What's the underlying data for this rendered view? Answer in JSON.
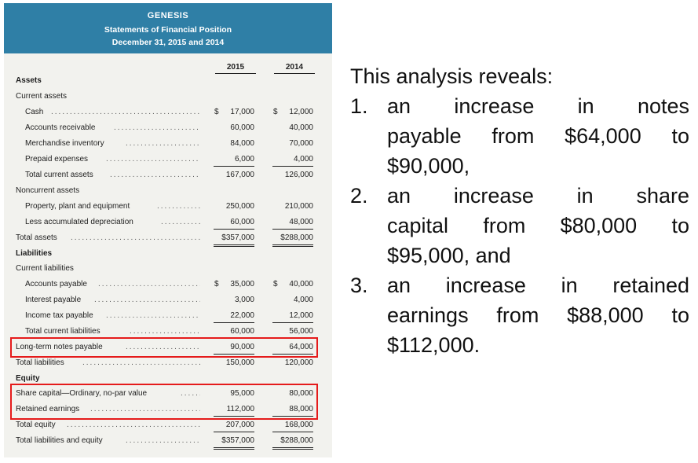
{
  "statement": {
    "company": "GENESIS",
    "title": "Statements of Financial Position",
    "date": "December 31, 2015 and 2014",
    "col1": "2015",
    "col2": "2014",
    "rows": {
      "assets": "Assets",
      "current_assets": "Current assets",
      "cash": {
        "label": "Cash",
        "v1": "17,000",
        "v2": "12,000",
        "cur": "$"
      },
      "ar": {
        "label": "Accounts receivable",
        "v1": "60,000",
        "v2": "40,000"
      },
      "inventory": {
        "label": "Merchandise inventory",
        "v1": "84,000",
        "v2": "70,000"
      },
      "prepaid": {
        "label": "Prepaid expenses",
        "v1": "6,000",
        "v2": "4,000"
      },
      "total_current_assets": {
        "label": "Total current assets",
        "v1": "167,000",
        "v2": "126,000"
      },
      "noncurrent_assets": "Noncurrent assets",
      "ppe": {
        "label": "Property, plant and equipment",
        "v1": "250,000",
        "v2": "210,000"
      },
      "accum_dep": {
        "label": "Less accumulated depreciation",
        "v1": "60,000",
        "v2": "48,000"
      },
      "total_assets": {
        "label": "Total assets",
        "v1": "$357,000",
        "v2": "$288,000"
      },
      "liabilities": "Liabilities",
      "current_liabilities": "Current liabilities",
      "ap": {
        "label": "Accounts payable",
        "v1": "35,000",
        "v2": "40,000",
        "cur": "$"
      },
      "interest": {
        "label": "Interest payable",
        "v1": "3,000",
        "v2": "4,000"
      },
      "tax": {
        "label": "Income tax payable",
        "v1": "22,000",
        "v2": "12,000"
      },
      "total_current_liabilities": {
        "label": "Total current liabilities",
        "v1": "60,000",
        "v2": "56,000"
      },
      "lt_notes": {
        "label": "Long-term notes payable",
        "v1": "90,000",
        "v2": "64,000"
      },
      "total_liabilities": {
        "label": "Total liabilities",
        "v1": "150,000",
        "v2": "120,000"
      },
      "equity": "Equity",
      "share_capital": {
        "label": "Share capital—Ordinary, no-par value",
        "v1": "95,000",
        "v2": "80,000"
      },
      "retained": {
        "label": "Retained earnings",
        "v1": "112,000",
        "v2": "88,000"
      },
      "total_equity": {
        "label": "Total equity",
        "v1": "207,000",
        "v2": "168,000"
      },
      "total_le": {
        "label": "Total liabilities and equity",
        "v1": "$357,000",
        "v2": "$288,000"
      }
    },
    "dots": "................................................",
    "header_color": "#2f7fa6",
    "highlight_color": "#e51b1b"
  },
  "analysis": {
    "intro": "This analysis reveals:",
    "items": [
      {
        "num": "1.",
        "lines": [
          "an increase in notes",
          "payable from $64,000 to",
          "$90,000,"
        ]
      },
      {
        "num": "2.",
        "lines": [
          "an increase in share",
          "capital from $80,000 to",
          "$95,000, and"
        ]
      },
      {
        "num": "3.",
        "lines": [
          "an increase in retained",
          "earnings from $88,000 to",
          "$112,000."
        ]
      }
    ]
  }
}
